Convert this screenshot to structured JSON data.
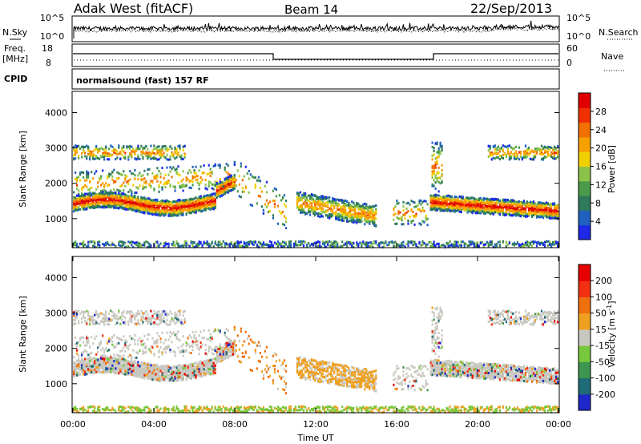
{
  "header": {
    "station": "Adak West (fitACF)",
    "beam": "Beam 14",
    "date": "22/Sep/2013"
  },
  "noise_panel": {
    "left_label": "N.Sky",
    "right_label": "N.Search",
    "ticks_left": [
      "10^5",
      "10^0"
    ],
    "ticks_right": [
      "10^5",
      "10^0"
    ]
  },
  "freq_panel": {
    "left_label_1": "Freq.",
    "left_label_2": "[MHz]",
    "right_label": "Nave",
    "ticks_left": [
      "18",
      "8"
    ],
    "ticks_right": [
      "60",
      "0"
    ]
  },
  "cpid_panel": {
    "label": "CPID",
    "program": "normalsound (fast) 157 RF"
  },
  "chart_data": [
    {
      "type": "heatmap",
      "title": "",
      "ylabel": "Slant Range [km]",
      "ylim": [
        180,
        4600
      ],
      "yticks": [
        "4000",
        "3000",
        "2000",
        "1000"
      ],
      "ytick_values": [
        4000,
        3000,
        2000,
        1000
      ],
      "colorbar_label": "Power [dB]",
      "colorbar_ticks": [
        "28",
        "24",
        "20",
        "16",
        "12",
        "8",
        "4"
      ],
      "colorbar_colors": [
        "#1e28e6",
        "#2060c0",
        "#2f7a5a",
        "#4a9a4a",
        "#8bc34a",
        "#f0d000",
        "#f8a000",
        "#f07000",
        "#f03000",
        "#e00000"
      ]
    },
    {
      "type": "heatmap",
      "title": "",
      "ylabel": "Slant Range [km]",
      "ylim": [
        180,
        4600
      ],
      "yticks": [
        "4000",
        "3000",
        "2000",
        "1000"
      ],
      "ytick_values": [
        4000,
        3000,
        2000,
        1000
      ],
      "colorbar_label": "Velocity [m s",
      "colorbar_label_sup": "-1",
      "colorbar_label_end": "]",
      "colorbar_ticks": [
        "200",
        "100",
        "50",
        "15",
        "-15",
        "-50",
        "-100",
        "-200"
      ],
      "colorbar_colors": [
        "#1e28c8",
        "#1e6c78",
        "#3c9650",
        "#78c83c",
        "#c8c8c0",
        "#f0a020",
        "#f07010",
        "#f03010",
        "#e80000"
      ]
    }
  ],
  "xaxis": {
    "ticks": [
      "00:00",
      "04:00",
      "08:00",
      "12:00",
      "16:00",
      "20:00",
      "00:00"
    ],
    "tick_hours": [
      0,
      4,
      8,
      12,
      16,
      20,
      24
    ],
    "label": "Time UT"
  }
}
